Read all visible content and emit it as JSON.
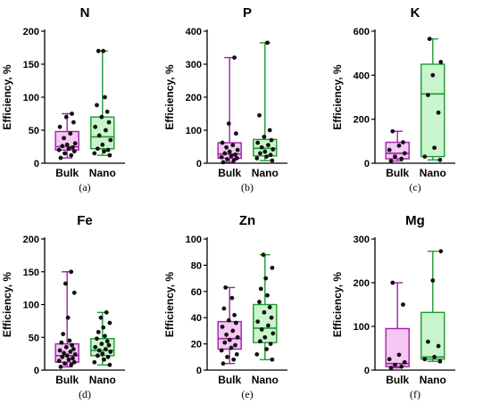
{
  "colors": {
    "bulk_stroke": "#a020a8",
    "bulk_fill": "#f5c8f3",
    "nano_stroke": "#1e9a2e",
    "nano_fill": "#c9f5cd",
    "point": "#111111",
    "axis": "#000000"
  },
  "chart_data": [
    {
      "type": "box",
      "title": "N",
      "ylabel": "Efficiency, %",
      "caption": "(a)",
      "ylim": [
        0,
        200
      ],
      "yticks": [
        0,
        50,
        100,
        150,
        200
      ],
      "categories": [
        "Bulk",
        "Nano"
      ],
      "series": [
        {
          "name": "Bulk",
          "min": 8,
          "q1": 20,
          "median": 25,
          "q3": 48,
          "max": 75,
          "points": [
            8,
            12,
            15,
            18,
            20,
            22,
            24,
            26,
            28,
            30,
            38,
            45,
            55,
            62,
            70,
            75
          ]
        },
        {
          "name": "Nano",
          "min": 12,
          "q1": 22,
          "median": 40,
          "q3": 70,
          "max": 170,
          "points": [
            12,
            15,
            18,
            20,
            22,
            28,
            35,
            42,
            50,
            55,
            62,
            70,
            78,
            88,
            100,
            170,
            170
          ]
        }
      ]
    },
    {
      "type": "box",
      "title": "P",
      "ylabel": "Efficiency, %",
      "caption": "(b)",
      "ylim": [
        0,
        400
      ],
      "yticks": [
        0,
        100,
        200,
        300,
        400
      ],
      "categories": [
        "Bulk",
        "Nano"
      ],
      "series": [
        {
          "name": "Bulk",
          "min": 3,
          "q1": 15,
          "median": 28,
          "q3": 62,
          "max": 320,
          "points": [
            3,
            8,
            12,
            15,
            18,
            22,
            26,
            30,
            35,
            40,
            48,
            55,
            62,
            90,
            120,
            320
          ]
        },
        {
          "name": "Nano",
          "min": 8,
          "q1": 22,
          "median": 45,
          "q3": 72,
          "max": 365,
          "points": [
            8,
            15,
            20,
            25,
            30,
            35,
            42,
            48,
            55,
            62,
            70,
            80,
            100,
            145,
            365
          ]
        }
      ]
    },
    {
      "type": "box",
      "title": "K",
      "ylabel": "Efficiency, %",
      "caption": "(c)",
      "ylim": [
        0,
        600
      ],
      "yticks": [
        0,
        200,
        400,
        600
      ],
      "categories": [
        "Bulk",
        "Nano"
      ],
      "series": [
        {
          "name": "Bulk",
          "min": 10,
          "q1": 20,
          "median": 45,
          "q3": 95,
          "max": 145,
          "points": [
            10,
            20,
            30,
            45,
            60,
            80,
            95,
            145
          ]
        },
        {
          "name": "Nano",
          "min": 15,
          "q1": 30,
          "median": 315,
          "q3": 450,
          "max": 565,
          "points": [
            15,
            30,
            70,
            230,
            310,
            400,
            460,
            565
          ]
        }
      ]
    },
    {
      "type": "box",
      "title": "Fe",
      "ylabel": "Efficiency, %",
      "caption": "(d)",
      "ylim": [
        0,
        200
      ],
      "yticks": [
        0,
        50,
        100,
        150,
        200
      ],
      "categories": [
        "Bulk",
        "Nano"
      ],
      "series": [
        {
          "name": "Bulk",
          "min": 5,
          "q1": 12,
          "median": 22,
          "q3": 40,
          "max": 150,
          "points": [
            5,
            8,
            10,
            12,
            14,
            16,
            18,
            20,
            22,
            24,
            26,
            28,
            30,
            32,
            35,
            38,
            42,
            45,
            55,
            80,
            118,
            132,
            150
          ]
        },
        {
          "name": "Nano",
          "min": 8,
          "q1": 22,
          "median": 30,
          "q3": 48,
          "max": 88,
          "points": [
            8,
            12,
            16,
            20,
            22,
            25,
            28,
            30,
            32,
            35,
            38,
            40,
            44,
            48,
            52,
            58,
            65,
            72,
            80,
            88
          ]
        }
      ]
    },
    {
      "type": "box",
      "title": "Zn",
      "ylabel": "Efficiency, %",
      "caption": "(e)",
      "ylim": [
        0,
        100
      ],
      "yticks": [
        0,
        20,
        40,
        60,
        80,
        100
      ],
      "categories": [
        "Bulk",
        "Nano"
      ],
      "series": [
        {
          "name": "Bulk",
          "min": 5,
          "q1": 16,
          "median": 24,
          "q3": 37,
          "max": 63,
          "points": [
            5,
            8,
            10,
            12,
            15,
            17,
            19,
            21,
            23,
            25,
            27,
            30,
            33,
            36,
            38,
            42,
            47,
            55,
            63
          ]
        },
        {
          "name": "Nano",
          "min": 8,
          "q1": 21,
          "median": 32,
          "q3": 50,
          "max": 88,
          "points": [
            8,
            12,
            16,
            20,
            22,
            25,
            28,
            31,
            34,
            37,
            40,
            44,
            48,
            52,
            57,
            62,
            70,
            78,
            88
          ]
        }
      ]
    },
    {
      "type": "box",
      "title": "Mg",
      "ylabel": "Efficiency, %",
      "caption": "(f)",
      "ylim": [
        0,
        300
      ],
      "yticks": [
        0,
        100,
        200,
        300
      ],
      "categories": [
        "Bulk",
        "Nano"
      ],
      "series": [
        {
          "name": "Bulk",
          "min": 5,
          "q1": 8,
          "median": 15,
          "q3": 95,
          "max": 200,
          "points": [
            5,
            8,
            12,
            18,
            25,
            35,
            150,
            200
          ]
        },
        {
          "name": "Nano",
          "min": 20,
          "q1": 25,
          "median": 30,
          "q3": 132,
          "max": 272,
          "points": [
            20,
            25,
            30,
            55,
            65,
            205,
            272
          ]
        }
      ]
    }
  ]
}
